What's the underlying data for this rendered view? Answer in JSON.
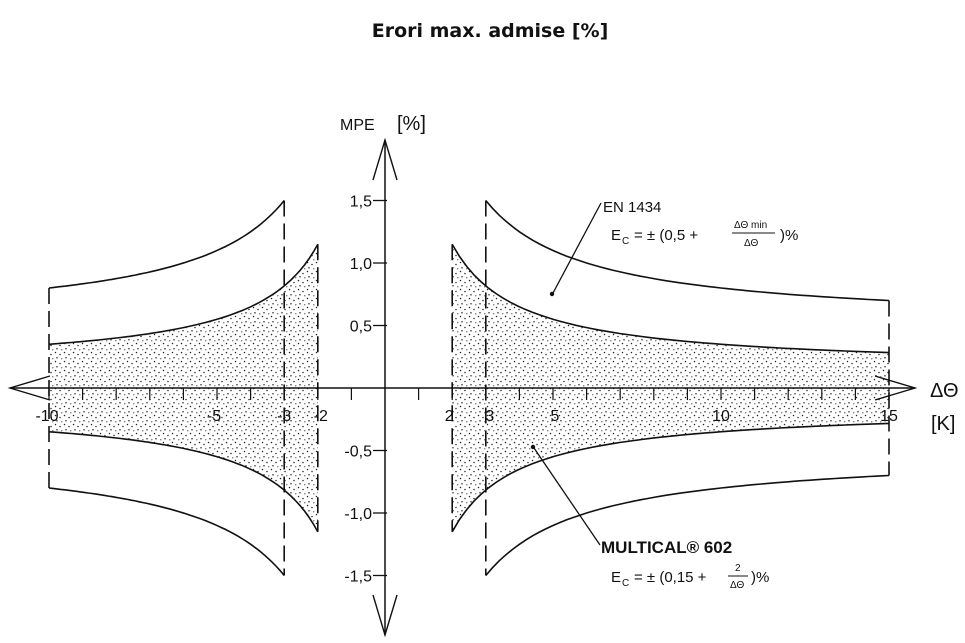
{
  "title": "Erori max. admise [%]",
  "chart_data": {
    "type": "line",
    "title": "Erori max. admise [%]",
    "ylabel": "MPE",
    "yunit": "[%]",
    "xlabel": "ΔΘ",
    "xunit": "[K]",
    "xlim": [
      -10.8,
      16.1
    ],
    "ylim": [
      -1.85,
      1.85
    ],
    "x_ticks": [
      -10,
      -5,
      -3,
      -2,
      2,
      3,
      5,
      10,
      15
    ],
    "x_tick_labels": [
      "-10",
      "-5",
      "-3",
      "-2",
      "2",
      "3",
      "5",
      "10",
      "15"
    ],
    "y_ticks": [
      1.5,
      1.0,
      0.5,
      -0.5,
      -1.0,
      -1.5
    ],
    "y_tick_labels": [
      "1,5",
      "1,0",
      "0,5",
      "-0,5",
      "-1,0",
      "-1,5"
    ],
    "series": [
      {
        "name": "EN 1434",
        "formula": "E c = ± (0,5 + ΔΘmin/ΔΘ)%",
        "delta_theta_min": 3,
        "x_range_positive": [
          3,
          15
        ],
        "x_range_negative": [
          -10,
          -3
        ],
        "values_positive": [
          [
            3,
            1.5
          ],
          [
            4,
            1.25
          ],
          [
            5,
            1.1
          ],
          [
            7.5,
            0.9
          ],
          [
            10,
            0.8
          ],
          [
            12.5,
            0.74
          ],
          [
            15,
            0.7
          ]
        ],
        "values_negative": [
          [
            -10,
            0.8
          ],
          [
            -7.5,
            0.9
          ],
          [
            -5,
            1.1
          ],
          [
            -4,
            1.25
          ],
          [
            -3,
            1.5
          ]
        ]
      },
      {
        "name": "MULTICAL® 602",
        "formula": "E c = ± (0,15 + 2/ΔΘ)%",
        "x_range_positive": [
          2,
          15
        ],
        "x_range_negative": [
          -10,
          -2
        ],
        "values_positive": [
          [
            2,
            1.15
          ],
          [
            3,
            0.82
          ],
          [
            5,
            0.55
          ],
          [
            7.5,
            0.42
          ],
          [
            10,
            0.35
          ],
          [
            15,
            0.28
          ]
        ],
        "values_negative": [
          [
            -10,
            0.35
          ],
          [
            -7.5,
            0.42
          ],
          [
            -5,
            0.55
          ],
          [
            -3,
            0.82
          ],
          [
            -2,
            1.15
          ]
        ]
      }
    ],
    "annotations": {
      "en_label": "EN 1434",
      "en_formula_prefix": "E",
      "en_formula_sub": "C",
      "en_formula_mid": "=  ± (0,5 +",
      "en_formula_num": "ΔΘ min",
      "en_formula_den": "ΔΘ",
      "en_formula_suffix": ")%",
      "mc_label": "MULTICAL® 602",
      "mc_formula_prefix": "E",
      "mc_formula_sub": "C",
      "mc_formula_mid": "=  ± (0,15 +",
      "mc_formula_num": "2",
      "mc_formula_den": "ΔΘ",
      "mc_formula_suffix": ")%"
    }
  }
}
